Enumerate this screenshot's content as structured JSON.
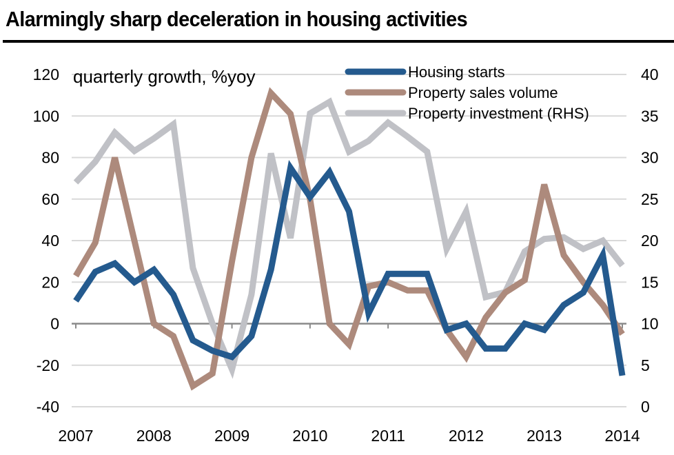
{
  "chart_data": {
    "type": "line",
    "title": "Alarmingly sharp deceleration in housing activities",
    "subtitle": "quarterly growth, %yoy",
    "xlabel": "",
    "ylabel": "",
    "x_ticks": [
      "2007",
      "2008",
      "2009",
      "2010",
      "2011",
      "2012",
      "2013",
      "2014"
    ],
    "x_range": [
      2007,
      2014
    ],
    "x_step": "quarterly",
    "x": [
      2007.0,
      2007.25,
      2007.5,
      2007.75,
      2008.0,
      2008.25,
      2008.5,
      2008.75,
      2009.0,
      2009.25,
      2009.5,
      2009.75,
      2010.0,
      2010.25,
      2010.5,
      2010.75,
      2011.0,
      2011.25,
      2011.5,
      2011.75,
      2012.0,
      2012.25,
      2012.5,
      2012.75,
      2013.0,
      2013.25,
      2013.5,
      2013.75,
      2014.0
    ],
    "ylim_left": [
      -40,
      120
    ],
    "yticks_left": [
      "120",
      "100",
      "80",
      "60",
      "40",
      "20",
      "0",
      "-20",
      "-40"
    ],
    "ylim_right": [
      0,
      40
    ],
    "yticks_right": [
      "40",
      "35",
      "30",
      "25",
      "20",
      "15",
      "10",
      "5",
      "0"
    ],
    "grid": true,
    "legend_position": "top-right",
    "series": [
      {
        "name": "Housing starts",
        "axis": "left",
        "color": "#245a8e",
        "values": [
          11,
          25,
          29,
          20,
          26,
          14,
          -8,
          -13,
          -16,
          -6,
          26,
          75,
          61,
          73,
          54,
          5,
          24,
          24,
          24,
          -3,
          0,
          -12,
          -12,
          0,
          -3,
          9,
          15,
          33,
          -25
        ]
      },
      {
        "name": "Property sales volume",
        "axis": "left",
        "color": "#ad8a7c",
        "values": [
          23,
          39,
          80,
          40,
          0,
          -6,
          -30,
          -24,
          30,
          80,
          111,
          101,
          60,
          0,
          -10,
          18,
          20,
          16,
          16,
          -3,
          -16,
          3,
          15,
          21,
          67,
          33,
          20,
          9,
          -5
        ]
      },
      {
        "name": "Property investment (RHS)",
        "axis": "right",
        "color": "#c0c1c6",
        "values": [
          27,
          29.5,
          33,
          30.8,
          32.3,
          34,
          16.7,
          10,
          4.5,
          13.5,
          30.5,
          20.3,
          35.3,
          36.7,
          30.7,
          32,
          34.2,
          32.5,
          30.7,
          19,
          23.5,
          13.2,
          13.8,
          18.7,
          20.2,
          20.4,
          19,
          20,
          17
        ]
      }
    ]
  }
}
